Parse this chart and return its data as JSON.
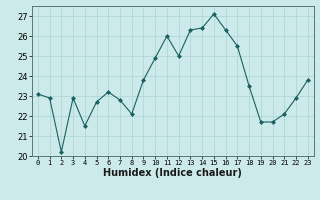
{
  "x": [
    0,
    1,
    2,
    3,
    4,
    5,
    6,
    7,
    8,
    9,
    10,
    11,
    12,
    13,
    14,
    15,
    16,
    17,
    18,
    19,
    20,
    21,
    22,
    23
  ],
  "y": [
    23.1,
    22.9,
    20.2,
    22.9,
    21.5,
    22.7,
    23.2,
    22.8,
    22.1,
    23.8,
    24.9,
    26.0,
    25.0,
    26.3,
    26.4,
    27.1,
    26.3,
    25.5,
    23.5,
    21.7,
    21.7,
    22.1,
    22.9,
    23.8
  ],
  "line_color": "#1a6060",
  "marker": "D",
  "marker_size": 2,
  "bg_color": "#cceaea",
  "grid_color": "#b0d8d8",
  "xlabel": "Humidex (Indice chaleur)",
  "xlim": [
    -0.5,
    23.5
  ],
  "ylim": [
    20,
    27.5
  ],
  "yticks": [
    20,
    21,
    22,
    23,
    24,
    25,
    26,
    27
  ],
  "xticks": [
    0,
    1,
    2,
    3,
    4,
    5,
    6,
    7,
    8,
    9,
    10,
    11,
    12,
    13,
    14,
    15,
    16,
    17,
    18,
    19,
    20,
    21,
    22,
    23
  ],
  "xtick_labels": [
    "0",
    "1",
    "2",
    "3",
    "4",
    "5",
    "6",
    "7",
    "8",
    "9",
    "10",
    "11",
    "12",
    "13",
    "14",
    "15",
    "16",
    "17",
    "18",
    "19",
    "20",
    "21",
    "22",
    "23"
  ],
  "xlabel_fontsize": 7,
  "ylabel_fontsize": 6,
  "xtick_fontsize": 5,
  "ytick_fontsize": 6
}
